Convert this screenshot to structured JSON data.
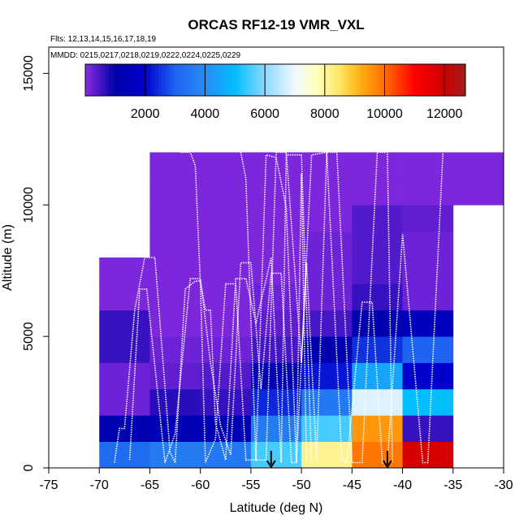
{
  "chart_data": {
    "type": "heatmap",
    "title": "ORCAS RF12-19 VMR_VXL",
    "flights_note": "Flts: 12,13,14,15,16,17,18,19",
    "dates_note": "MMDD: 0215,0217,0218,0219,0222,0224,0225,0229",
    "xlabel": "Latitude (deg N)",
    "ylabel": "Altitude (m)",
    "xlim": [
      -75,
      -30
    ],
    "ylim": [
      0,
      16000
    ],
    "x_ticks": [
      -75,
      -70,
      -65,
      -60,
      -55,
      -50,
      -45,
      -40,
      -35,
      -30
    ],
    "x_tick_labels": [
      "-75",
      "-70",
      "-65",
      "-60",
      "-55",
      "-50",
      "-45",
      "-40",
      "-35",
      "-30"
    ],
    "y_ticks": [
      0,
      5000,
      10000,
      15000
    ],
    "y_tick_labels": [
      "0",
      "5000",
      "10000",
      "15000"
    ],
    "colorbar": {
      "range": [
        0,
        12700
      ],
      "ticks": [
        2000,
        4000,
        6000,
        8000,
        10000,
        12000
      ],
      "tick_labels": [
        "2000",
        "4000",
        "6000",
        "8000",
        "10000",
        "12000"
      ]
    },
    "grid": {
      "lat_edges": [
        -70,
        -65,
        -60,
        -55,
        -50,
        -45,
        -40,
        -35
      ],
      "alt_bin_height_m": 1000,
      "lat_bins": [
        "-70 to -65",
        "-65 to -60",
        "-60 to -55",
        "-55 to -50",
        "-50 to -45",
        "-45 to -40",
        "-40 to -35",
        "-35 to -30"
      ],
      "columns": [
        [
          3200,
          1200,
          200,
          200,
          600,
          600,
          100,
          100
        ],
        [
          3600,
          1400,
          700,
          300,
          200,
          100,
          100,
          100,
          100,
          100,
          100,
          100
        ],
        [
          3500,
          1300,
          600,
          400,
          200,
          100,
          100,
          100,
          100,
          100,
          100,
          100
        ],
        [
          5500,
          3600,
          2400,
          1200,
          500,
          300,
          200,
          100,
          100,
          100,
          100,
          100
        ],
        [
          8100,
          5500,
          3500,
          2200,
          1100,
          500,
          200,
          200,
          200,
          100,
          100,
          100
        ],
        [
          9900,
          9500,
          6800,
          4500,
          2500,
          1100,
          600,
          400,
          400,
          400,
          100,
          100
        ],
        [
          11800,
          600,
          5000,
          2000,
          3000,
          1500,
          200,
          200,
          200,
          300,
          100,
          100
        ],
        [
          null,
          null,
          null,
          null,
          null,
          null,
          null,
          null,
          null,
          null,
          100,
          100
        ]
      ]
    },
    "flight_tracks": [
      [
        [
          -68.5,
          200
        ],
        [
          -68,
          1500
        ],
        [
          -67.5,
          1500
        ],
        [
          -66.5,
          6000
        ],
        [
          -65.5,
          8000
        ],
        [
          -64.5,
          8000
        ],
        [
          -63,
          600
        ],
        [
          -62.5,
          200
        ],
        [
          -61.5,
          6800
        ],
        [
          -60.5,
          7100
        ],
        [
          -60,
          7100
        ],
        [
          -59.5,
          6000
        ],
        [
          -59,
          6000
        ],
        [
          -58.5,
          1700
        ],
        [
          -57.5,
          300
        ],
        [
          -56.5,
          7200
        ],
        [
          -55.5,
          7200
        ],
        [
          -54.5,
          5500
        ],
        [
          -53,
          8000
        ],
        [
          -52,
          200
        ],
        [
          -51.5,
          11900
        ],
        [
          -50,
          11900
        ],
        [
          -49,
          200
        ]
      ],
      [
        [
          -67,
          300
        ],
        [
          -66,
          6800
        ],
        [
          -65.3,
          6800
        ],
        [
          -63.5,
          200
        ],
        [
          -62.5,
          1300
        ],
        [
          -61,
          7200
        ],
        [
          -60,
          7200
        ],
        [
          -59,
          4000
        ],
        [
          -58,
          1600
        ],
        [
          -57,
          500
        ],
        [
          -56,
          7800
        ],
        [
          -55,
          7800
        ],
        [
          -54,
          3000
        ],
        [
          -53,
          7400
        ],
        [
          -52,
          7400
        ],
        [
          -51,
          200
        ],
        [
          -50.5,
          200
        ],
        [
          -49,
          11900
        ],
        [
          -47.5,
          12000
        ],
        [
          -46,
          300
        ],
        [
          -45.5,
          200
        ],
        [
          -44,
          6300
        ],
        [
          -43,
          6300
        ],
        [
          -42,
          200
        ],
        [
          -41.5,
          200
        ],
        [
          -40,
          8900
        ],
        [
          -38,
          200
        ],
        [
          -37.5,
          200
        ],
        [
          -36,
          12000
        ]
      ],
      [
        [
          -62,
          12000
        ],
        [
          -61,
          12000
        ],
        [
          -60.5,
          11500
        ],
        [
          -60,
          7000
        ],
        [
          -59.5,
          200
        ],
        [
          -58.5,
          1100
        ],
        [
          -57.5,
          7000
        ],
        [
          -56.5,
          7000
        ],
        [
          -55.5,
          300
        ],
        [
          -54.5,
          300
        ],
        [
          -53.5,
          11900
        ],
        [
          -52.5,
          11800
        ],
        [
          -51.5,
          9900
        ],
        [
          -50.5,
          200
        ],
        [
          -50,
          11200
        ],
        [
          -49.5,
          200
        ]
      ],
      [
        [
          -56,
          12000
        ],
        [
          -55.5,
          11000
        ],
        [
          -54.5,
          300
        ],
        [
          -53.5,
          300
        ],
        [
          -52.5,
          12000
        ],
        [
          -51.5,
          12000
        ],
        [
          -50,
          4000
        ],
        [
          -49.5,
          7800
        ],
        [
          -48.5,
          300
        ],
        [
          -47.5,
          12000
        ],
        [
          -46.5,
          12000
        ],
        [
          -45,
          200
        ],
        [
          -44,
          200
        ],
        [
          -42.5,
          12000
        ],
        [
          -41.5,
          12000
        ],
        [
          -41,
          200
        ]
      ]
    ],
    "markers": [
      {
        "lat": -53,
        "label": "flight marker"
      },
      {
        "lat": -41.5,
        "label": "flight marker"
      }
    ]
  }
}
